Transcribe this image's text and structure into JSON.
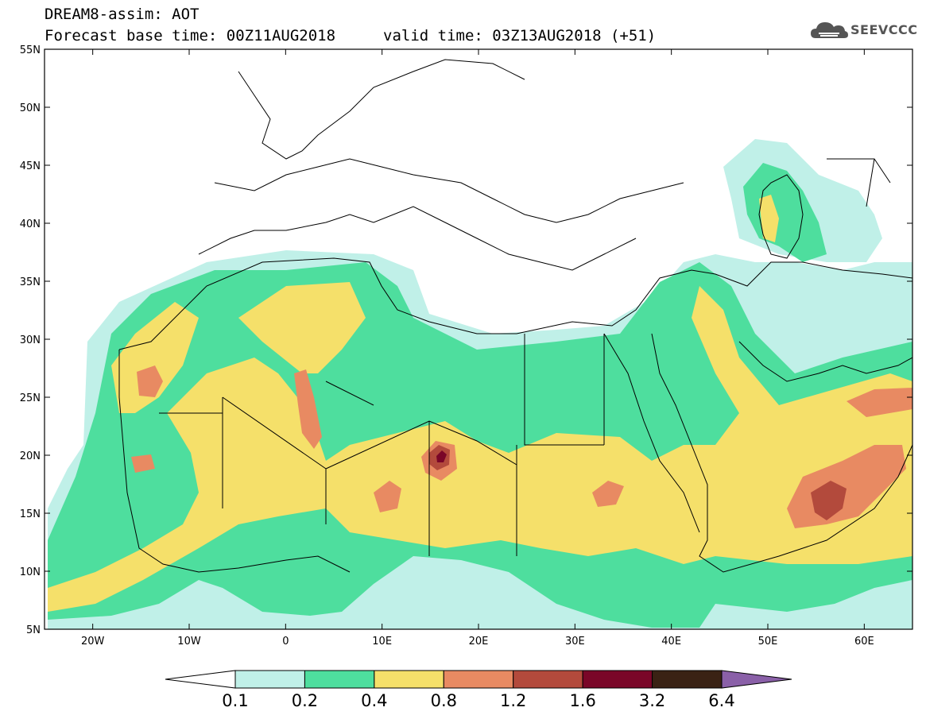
{
  "title": {
    "line1": "DREAM8-assim: AOT",
    "line2": "Forecast base time: 00Z11AUG2018",
    "line2b": "valid time: 03Z13AUG2018 (+51)"
  },
  "logo": {
    "text": "SEEVCCC",
    "icon": "cloud-icon"
  },
  "map": {
    "lon_ticks": [
      "20W",
      "10W",
      "0",
      "10E",
      "20E",
      "30E",
      "40E",
      "50E",
      "60E"
    ],
    "lat_ticks": [
      "55N",
      "50N",
      "45N",
      "40N",
      "35N",
      "30N",
      "25N",
      "20N",
      "15N",
      "10N",
      "5N"
    ],
    "lon_range": [
      -25,
      65
    ],
    "lat_range": [
      5,
      55
    ]
  },
  "colorbar": {
    "labels": [
      "0.1",
      "0.2",
      "0.4",
      "0.8",
      "1.2",
      "1.6",
      "3.2",
      "6.4"
    ],
    "colors": [
      "#ffffff",
      "#c0f0e8",
      "#4ede9e",
      "#f5e06a",
      "#e88a62",
      "#b34a3c",
      "#7a0628",
      "#3a2214",
      "#8a60a8"
    ]
  },
  "fields": {
    "c_01": "#c0f0e8",
    "c_02": "#4ede9e",
    "c_04": "#f5e06a",
    "c_08": "#e88a62",
    "c_12": "#b34a3c",
    "c_16": "#7a0628"
  }
}
